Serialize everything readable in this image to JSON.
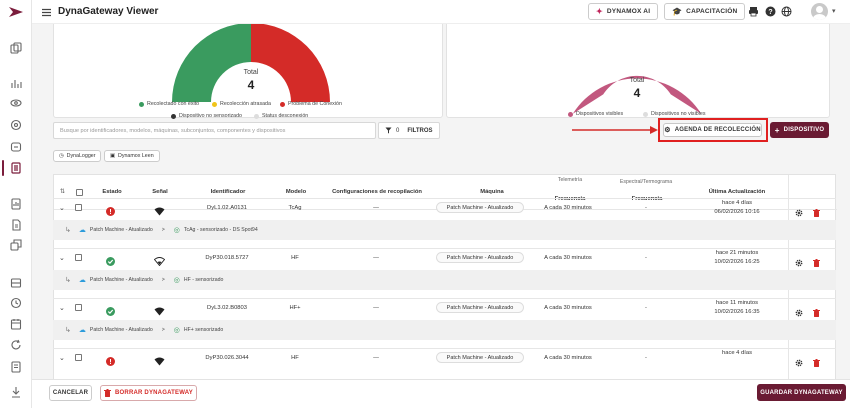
{
  "app": {
    "title": "DynaGateway Viewer"
  },
  "topbar": {
    "ai_button": "DYNAMOX AI",
    "training_button": "CAPACITACIÓN",
    "icons": [
      "menu-icon",
      "print-icon",
      "help-icon",
      "globe-icon",
      "user-avatar-icon",
      "chevron-down-icon"
    ]
  },
  "chart_left": {
    "total_label": "Total",
    "total_value": "4",
    "colors": {
      "success": "#3a9b5f",
      "delayed": "#f0c419",
      "problem": "#d42b28",
      "not_sensed": "#333333",
      "disconnected": "#dddddd"
    },
    "chart_data": {
      "type": "pie",
      "style": "semi-donut",
      "categories": [
        "Recolectado con éxito",
        "Recolección atrasada",
        "Problema de Conexión",
        "Dispositivo no sensorizado",
        "Status desconexión"
      ],
      "values": [
        2,
        0,
        2,
        0,
        0
      ]
    },
    "legend": [
      {
        "label": "Recolectado con éxito",
        "color": "#3a9b5f"
      },
      {
        "label": "Recolección atrasada",
        "color": "#f0c419"
      },
      {
        "label": "Problema de Conexión",
        "color": "#d42b28"
      },
      {
        "label": "Dispositivo no sensorizado",
        "color": "#333333"
      },
      {
        "label": "Status desconexión",
        "color": "#dddddd"
      }
    ]
  },
  "chart_right": {
    "total_label": "Total",
    "total_value": "4",
    "chart_data": {
      "type": "pie",
      "style": "semi-donut",
      "categories": [
        "Dispositivos visibles",
        "Dispositivos no visibles"
      ],
      "values": [
        4,
        0
      ]
    },
    "legend": [
      {
        "label": "Dispositivos visibles",
        "color": "#c2587f"
      },
      {
        "label": "Dispositivos no visibles",
        "color": "#dddddd"
      }
    ]
  },
  "filters": {
    "search_placeholder": "Busque por identificadores, modelos, máquinas, subconjuntos, componentes y dispositivos",
    "filter_count": "0",
    "filter_label": "FILTROS"
  },
  "actions": {
    "agenda_button": "AGENDA DE RECOLECCIÓN",
    "add_device_button": "DISPOSITIVO"
  },
  "tabs": [
    "DynaLogger",
    "Dynamox Leen"
  ],
  "table": {
    "headers": {
      "estado": "Estado",
      "senal": "Señal",
      "identificador": "Identificador",
      "modelo": "Modelo",
      "config": "Configuraciones de recopilación",
      "maquina": "Máquina",
      "telemetria": "Telemetría",
      "frecuencia1": "Frecuencia",
      "espectral": "Espectral/Termograma",
      "frecuencia2": "Frecuencia",
      "ultima": "Última Actualización"
    },
    "rows": [
      {
        "status": "error",
        "signal": "strong",
        "id": "DyL1.02.A0131",
        "model": "TcAg",
        "config": "—",
        "machine": "Patch Machine - Atualizado",
        "telemetry_freq": "A cada 30 minutos",
        "spectral_freq": "-",
        "updated_rel": "hace 4 días",
        "updated_abs": "06/02/2026 10:16",
        "path_machine": "Patch Machine - Atualizado",
        "path_sep": ">",
        "path_sensor": "TcAg - sensorizado - DS Spot94"
      },
      {
        "status": "ok",
        "signal": "weak",
        "id": "DyP30.018.5727",
        "model": "HF",
        "config": "—",
        "machine": "Patch Machine - Atualizado",
        "telemetry_freq": "A cada 30 minutos",
        "spectral_freq": "-",
        "updated_rel": "hace 21 minutos",
        "updated_abs": "10/02/2026 16:25",
        "path_machine": "Patch Machine - Atualizado",
        "path_sep": ">",
        "path_sensor": "HF - sensorizado"
      },
      {
        "status": "ok",
        "signal": "strong",
        "id": "DyL3.02.B0803",
        "model": "HF+",
        "config": "—",
        "machine": "Patch Machine - Atualizado",
        "telemetry_freq": "A cada 30 minutos",
        "spectral_freq": "-",
        "updated_rel": "hace 11 minutos",
        "updated_abs": "10/02/2026 16:35",
        "path_machine": "Patch Machine - Atualizado",
        "path_sep": ">",
        "path_sensor": "HF+ sensorizado"
      },
      {
        "status": "error",
        "signal": "strong",
        "id": "DyP30.026.3044",
        "model": "HF",
        "config": "—",
        "machine": "Patch Machine - Atualizado",
        "telemetry_freq": "A cada 30 minutos",
        "spectral_freq": "-",
        "updated_rel": "hace 4 días",
        "updated_abs": ""
      }
    ]
  },
  "footer": {
    "cancel_button": "CANCELAR",
    "delete_button": "BORRAR DYNAGATEWAY",
    "save_button": "GUARDAR DYNAGATEWAY"
  }
}
